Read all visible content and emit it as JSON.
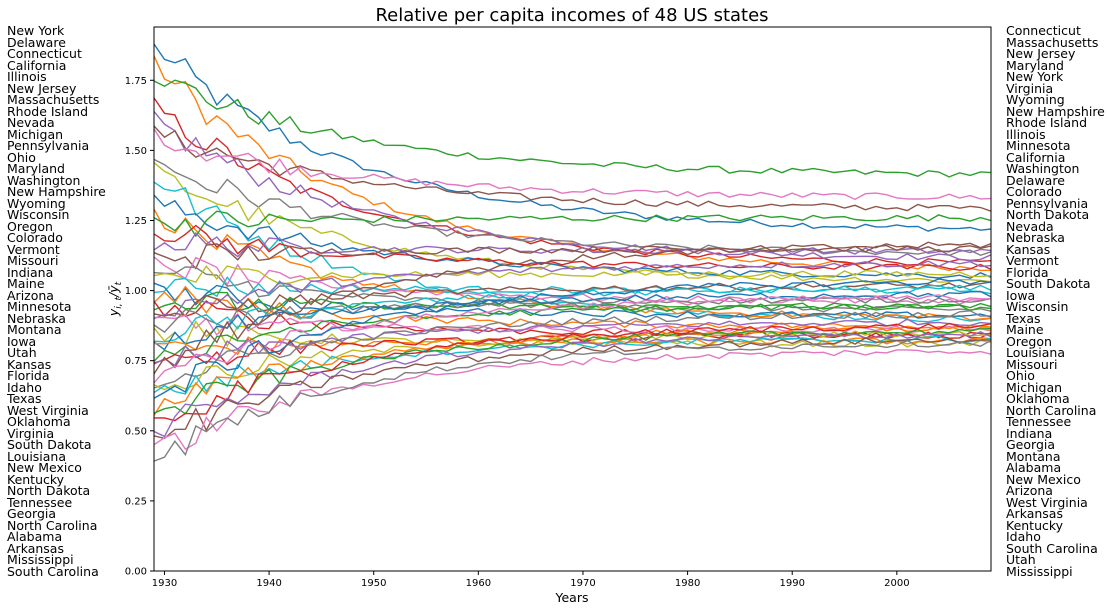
{
  "chart_data": {
    "type": "line",
    "title": "Relative per capita incomes of 48 US states",
    "xlabel": "Years",
    "ylabel": "y_{i,t}/ȳ_t",
    "xlim": [
      1929,
      2009
    ],
    "ylim": [
      0.0,
      1.94
    ],
    "x_ticks": [
      "1930",
      "1940",
      "1950",
      "1960",
      "1970",
      "1980",
      "1990",
      "2000"
    ],
    "y_ticks": [
      "0.00",
      "0.25",
      "0.50",
      "0.75",
      "1.00",
      "1.25",
      "1.50",
      "1.75"
    ],
    "grid": false,
    "left_labels_title_order": "states ranked in 1929",
    "left_labels": [
      "New York",
      "Delaware",
      "Connecticut",
      "California",
      "Illinois",
      "New Jersey",
      "Massachusetts",
      "Rhode Island",
      "Nevada",
      "Michigan",
      "Pennsylvania",
      "Ohio",
      "Maryland",
      "Washington",
      "New Hampshire",
      "Wyoming",
      "Wisconsin",
      "Oregon",
      "Colorado",
      "Vermont",
      "Missouri",
      "Indiana",
      "Maine",
      "Arizona",
      "Minnesota",
      "Nebraska",
      "Montana",
      "Iowa",
      "Utah",
      "Kansas",
      "Florida",
      "Idaho",
      "Texas",
      "West Virginia",
      "Oklahoma",
      "Virginia",
      "South Dakota",
      "Louisiana",
      "New Mexico",
      "Kentucky",
      "North Dakota",
      "Tennessee",
      "Georgia",
      "North Carolina",
      "Alabama",
      "Arkansas",
      "Mississippi",
      "South Carolina"
    ],
    "right_labels": [
      "Connecticut",
      "Massachusetts",
      "New Jersey",
      "Maryland",
      "New York",
      "Virginia",
      "Wyoming",
      "New Hampshire",
      "Rhode Island",
      "Illinois",
      "Minnesota",
      "California",
      "Washington",
      "Delaware",
      "Colorado",
      "Pennsylvania",
      "North Dakota",
      "Nevada",
      "Nebraska",
      "Kansas",
      "Vermont",
      "Florida",
      "South Dakota",
      "Iowa",
      "Wisconsin",
      "Texas",
      "Maine",
      "Oregon",
      "Louisiana",
      "Missouri",
      "Ohio",
      "Michigan",
      "Oklahoma",
      "North Carolina",
      "Tennessee",
      "Indiana",
      "Georgia",
      "Montana",
      "Alabama",
      "New Mexico",
      "Arizona",
      "West Virginia",
      "Arkansas",
      "Kentucky",
      "Idaho",
      "South Carolina",
      "Utah",
      "Mississippi"
    ],
    "palette": [
      "#1f77b4",
      "#ff7f0e",
      "#2ca02c",
      "#d62728",
      "#9467bd",
      "#8c564b",
      "#e377c2",
      "#7f7f7f",
      "#bcbd22",
      "#17becf"
    ],
    "series_note_keyframes_years": [
      1929,
      1932,
      1935,
      1940,
      1944,
      1950,
      1960,
      1970,
      1980,
      1990,
      2000,
      2009
    ]
  }
}
